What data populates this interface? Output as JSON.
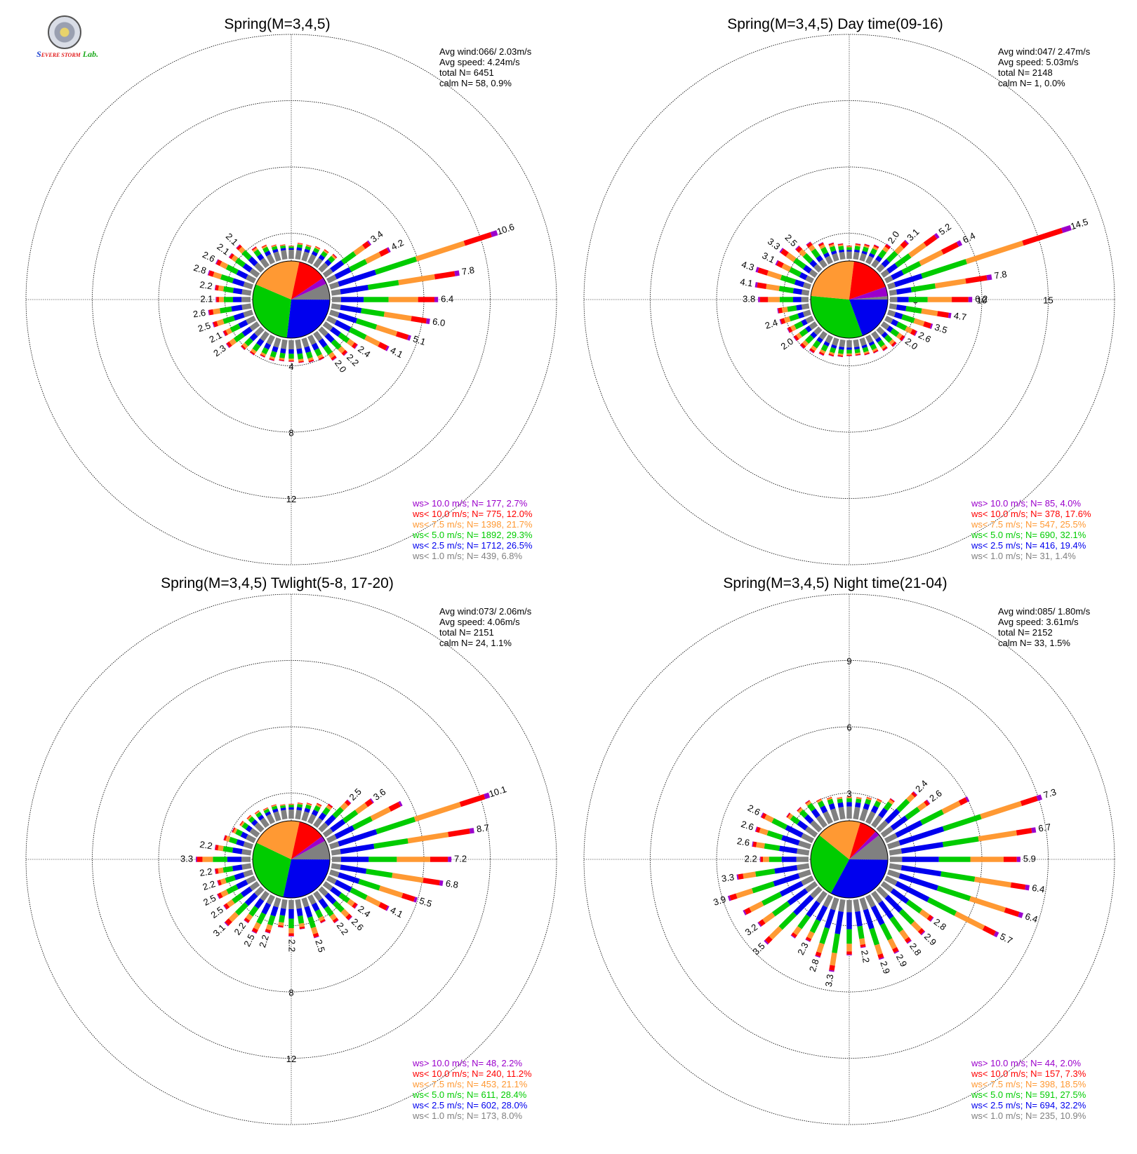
{
  "logo": {
    "text_a": "S",
    "text_b": "EVERE STORM",
    "text_c": "Lab."
  },
  "colors": {
    "ws_gt10": "#9b00cc",
    "ws_lt10": "#ff0000",
    "ws_lt75": "#ff9933",
    "ws_lt5": "#00cc00",
    "ws_lt25": "#0000ee",
    "ws_lt1": "#808080"
  },
  "chart_data": [
    {
      "type": "wind-rose",
      "title": "Spring(M=3,4,5)",
      "stats": [
        "Avg wind:066/ 2.03m/s",
        "Avg speed: 4.24m/s",
        "total N=       6451",
        "calm N=     58,   0.9%"
      ],
      "ring_values": [
        4,
        8,
        12
      ],
      "max_scale": 16,
      "pie_percent": [
        6.8,
        26.5,
        29.3,
        21.7,
        12.0,
        2.7
      ],
      "sector_totals": [
        0.8,
        1.0,
        1.0,
        1.1,
        1.2,
        1.3,
        3.4,
        4.2,
        10.6,
        7.8,
        6.4,
        6.0,
        5.1,
        4.1,
        2.4,
        2.2,
        2.0,
        1.6,
        1.5,
        1.4,
        1.3,
        1.3,
        1.4,
        1.4,
        1.6,
        1.7,
        2.3,
        2.1,
        2.5,
        2.6,
        2.1,
        2.2,
        2.8,
        2.6,
        2.1,
        2.1,
        1.4,
        1.2,
        1.0,
        0.9
      ],
      "sector_labels": [
        "",
        "",
        "",
        "",
        "",
        "",
        "3.4",
        "4.2",
        "10.6",
        "7.8",
        "6.4",
        "6.0",
        "5.1",
        "4.1",
        "2.4",
        "2.2",
        "2.0",
        "",
        "",
        "",
        "",
        "",
        "",
        "",
        "",
        "",
        "2.3",
        "2.1",
        "2.5",
        "2.6",
        "2.1",
        "2.2",
        "2.8",
        "2.6",
        "2.1",
        "2.1",
        "",
        "",
        "",
        ""
      ],
      "legend": [
        "ws> 10.0 m/s; N=   177,  2.7%",
        "ws< 10.0 m/s; N=   775, 12.0%",
        "ws<  7.5 m/s; N=  1398, 21.7%",
        "ws<  5.0 m/s; N=  1892, 29.3%",
        "ws<  2.5 m/s; N=  1712, 26.5%",
        "ws<  1.0 m/s; N=   439,  6.8%"
      ]
    },
    {
      "type": "wind-rose",
      "title": "Spring(M=3,4,5) Day time(09-16)",
      "stats": [
        "Avg wind:047/ 2.47m/s",
        "Avg speed: 5.03m/s",
        "total N=       2148",
        "calm N=      1,   0.0%"
      ],
      "ring_values": [
        5,
        10,
        15
      ],
      "max_scale": 20,
      "pie_percent": [
        1.4,
        19.4,
        32.1,
        25.5,
        17.6,
        4.0
      ],
      "sector_totals": [
        1.0,
        1.2,
        1.3,
        1.5,
        2.0,
        3.1,
        5.2,
        6.4,
        14.5,
        7.8,
        6.2,
        4.7,
        3.5,
        2.6,
        2.0,
        1.8,
        1.6,
        1.4,
        1.3,
        1.2,
        1.2,
        1.3,
        1.4,
        1.6,
        1.8,
        2.0,
        2.0,
        2.1,
        2.4,
        2.4,
        3.8,
        4.1,
        4.3,
        3.1,
        3.3,
        2.5,
        2.2,
        1.7,
        1.4,
        1.2
      ],
      "sector_labels": [
        "",
        "",
        "",
        "",
        "2.0",
        "3.1",
        "5.2",
        "6.4",
        "14.5",
        "7.8",
        "6.2",
        "4.7",
        "3.5",
        "2.6",
        "2.0",
        "",
        "",
        "",
        "",
        "",
        "",
        "",
        "",
        "",
        "",
        "",
        "2.0",
        "",
        "2.4",
        "",
        "3.8",
        "4.1",
        "4.3",
        "3.1",
        "3.3",
        "2.5",
        "",
        "",
        "",
        ""
      ],
      "legend": [
        "ws> 10.0 m/s; N=    85,  4.0%",
        "ws< 10.0 m/s; N=   378, 17.6%",
        "ws<  7.5 m/s; N=   547, 25.5%",
        "ws<  5.0 m/s; N=   690, 32.1%",
        "ws<  2.5 m/s; N=   416, 19.4%",
        "ws<  1.0 m/s; N=    31,  1.4%"
      ]
    },
    {
      "type": "wind-rose",
      "title": "Spring(M=3,4,5) Twlight(5-8, 17-20)",
      "stats": [
        "Avg wind:073/ 2.06m/s",
        "Avg speed: 4.06m/s",
        "total N=       2151",
        "calm N=     24,   1.1%"
      ],
      "ring_values": [
        4,
        8,
        12
      ],
      "max_scale": 16,
      "pie_percent": [
        8.0,
        28.0,
        28.4,
        21.1,
        11.2,
        2.2
      ],
      "sector_totals": [
        0.9,
        1.0,
        1.1,
        1.3,
        1.6,
        2.5,
        3.6,
        5.0,
        10.1,
        8.7,
        7.2,
        6.8,
        5.5,
        4.1,
        2.4,
        2.6,
        2.2,
        1.8,
        2.5,
        1.8,
        2.2,
        1.7,
        2.2,
        2.5,
        2.2,
        3.1,
        2.5,
        2.5,
        2.2,
        2.2,
        3.3,
        2.2,
        1.8,
        1.5,
        1.3,
        1.2,
        1.1,
        1.0,
        1.0,
        0.9
      ],
      "sector_labels": [
        "",
        "",
        "",
        "",
        "",
        "2.5",
        "3.6",
        "",
        "10.1",
        "8.7",
        "7.2",
        "6.8",
        "5.5",
        "4.1",
        "2.4",
        "2.6",
        "2.2",
        "",
        "2.5",
        "",
        "2.2",
        "",
        "2.2",
        "2.5",
        "2.2",
        "3.1",
        "2.5",
        "2.5",
        "2.2",
        "2.2",
        "3.3",
        "2.2",
        "",
        "",
        "",
        "",
        "",
        "",
        "",
        ""
      ],
      "legend": [
        "ws> 10.0 m/s; N=    48,  2.2%",
        "ws< 10.0 m/s; N=   240, 11.2%",
        "ws<  7.5 m/s; N=   453, 21.1%",
        "ws<  5.0 m/s; N=   611, 28.4%",
        "ws<  2.5 m/s; N=   602, 28.0%",
        "ws<  1.0 m/s; N=   173,  8.0%"
      ]
    },
    {
      "type": "wind-rose",
      "title": "Spring(M=3,4,5) Night time(21-04)",
      "stats": [
        "Avg wind:085/ 1.80m/s",
        "Avg speed: 3.61m/s",
        "total N=       2152",
        "calm N=     33,   1.5%"
      ],
      "ring_values": [
        3,
        6,
        9
      ],
      "max_scale": 12,
      "pie_percent": [
        10.9,
        32.2,
        27.5,
        18.5,
        7.3,
        2.0
      ],
      "sector_totals": [
        1.0,
        1.0,
        1.1,
        1.2,
        1.5,
        2.4,
        2.6,
        4.2,
        7.3,
        6.7,
        5.9,
        6.4,
        6.4,
        5.7,
        2.8,
        2.9,
        2.8,
        2.9,
        2.9,
        2.2,
        2.5,
        3.3,
        2.8,
        2.3,
        2.5,
        3.5,
        3.2,
        3.5,
        3.9,
        3.3,
        2.2,
        2.6,
        2.6,
        2.6,
        1.6,
        1.4,
        1.4,
        1.2,
        1.1,
        1.0
      ],
      "sector_labels": [
        "",
        "",
        "",
        "",
        "",
        "2.4",
        "2.6",
        "",
        "7.3",
        "6.7",
        "5.9",
        "6.4",
        "6.4",
        "5.7",
        "2.8",
        "2.9",
        "2.8",
        "2.9",
        "2.9",
        "2.2",
        "",
        "3.3",
        "2.8",
        "2.3",
        "",
        "3.5",
        "3.2",
        "",
        "3.9",
        "3.3",
        "2.2",
        "2.6",
        "2.6",
        "2.6",
        "",
        "",
        "",
        "",
        "",
        ""
      ],
      "legend": [
        "ws> 10.0 m/s; N=    44,  2.0%",
        "ws< 10.0 m/s; N=   157,  7.3%",
        "ws<  7.5 m/s; N=   398, 18.5%",
        "ws<  5.0 m/s; N=   591, 27.5%",
        "ws<  2.5 m/s; N=   694, 32.2%",
        "ws<  1.0 m/s; N=   235, 10.9%"
      ]
    }
  ]
}
